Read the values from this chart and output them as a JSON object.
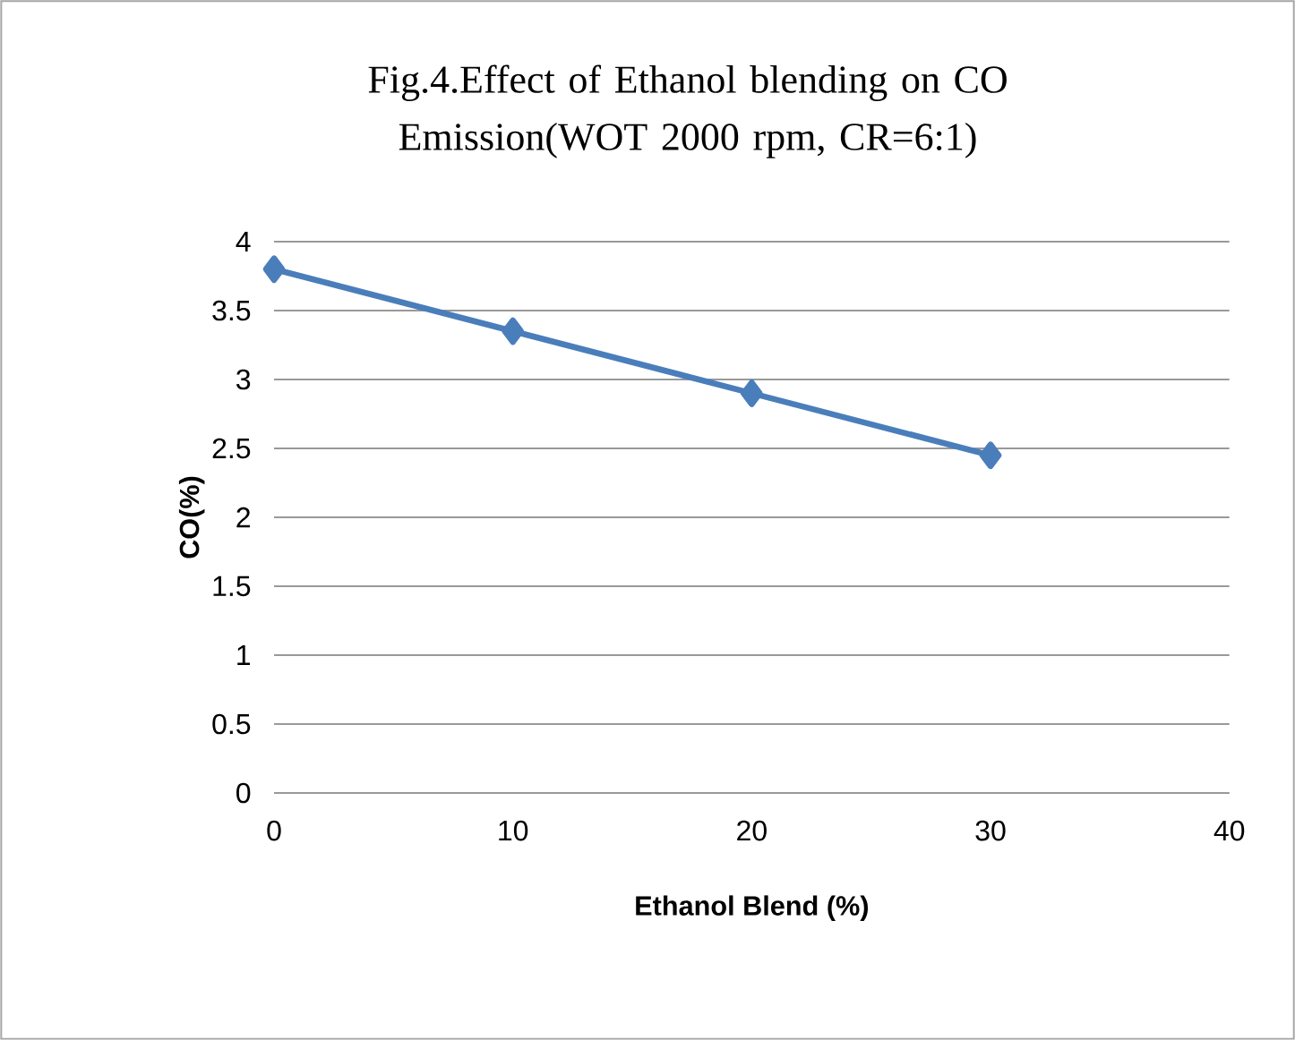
{
  "chart_data": {
    "type": "line",
    "title": "Fig.4.Effect of Ethanol blending on CO Emission(WOT 2000 rpm, CR=6:1)",
    "xlabel": "Ethanol Blend (%)",
    "ylabel": "CO(%)",
    "x": [
      0,
      10,
      20,
      30
    ],
    "series": [
      {
        "color": "#4a7ebb",
        "values": [
          3.8,
          3.35,
          2.9,
          2.45
        ]
      }
    ],
    "xlim": [
      0,
      40
    ],
    "xticks": [
      0,
      10,
      20,
      30,
      40
    ],
    "ylim": [
      0,
      4
    ],
    "yticks": [
      0,
      0.5,
      1,
      1.5,
      2,
      2.5,
      3,
      3.5,
      4
    ],
    "grid": "y",
    "marker": "diamond",
    "line_style": "solid"
  }
}
